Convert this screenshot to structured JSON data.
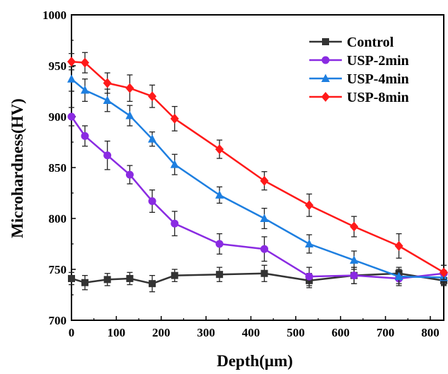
{
  "chart_data": {
    "type": "line",
    "xlabel": "Depth(μm)",
    "ylabel": "Microhardness(HV)",
    "xlim": [
      0,
      830
    ],
    "ylim": [
      700,
      1000
    ],
    "xticks": [
      0,
      100,
      200,
      300,
      400,
      500,
      600,
      700,
      800
    ],
    "yticks": [
      700,
      750,
      800,
      850,
      900,
      950,
      1000
    ],
    "grid": false,
    "legend_position": "top-right",
    "x": [
      0,
      30,
      80,
      130,
      180,
      230,
      330,
      430,
      530,
      630,
      730,
      830
    ],
    "series": [
      {
        "name": "Control",
        "color": "#333333",
        "marker": "square",
        "values": [
          741,
          737,
          740,
          741,
          736,
          744,
          745,
          746,
          739,
          744,
          746,
          739
        ],
        "errors": [
          6,
          7,
          6,
          6,
          8,
          6,
          7,
          8,
          7,
          8,
          6,
          5
        ]
      },
      {
        "name": "USP-2min",
        "color": "#8a2be2",
        "marker": "circle",
        "values": [
          900,
          881,
          862,
          843,
          817,
          795,
          775,
          770,
          743,
          744,
          741,
          746
        ],
        "errors": [
          9,
          10,
          14,
          9,
          11,
          12,
          10,
          12,
          9,
          8,
          7,
          8
        ]
      },
      {
        "name": "USP-4min",
        "color": "#1e7fe0",
        "marker": "triangle",
        "values": [
          937,
          926,
          916,
          901,
          878,
          853,
          823,
          800,
          775,
          759,
          743,
          742
        ],
        "errors": [
          12,
          11,
          11,
          10,
          7,
          10,
          8,
          10,
          9,
          9,
          7,
          7
        ]
      },
      {
        "name": "USP-8min",
        "color": "#ff1a1a",
        "marker": "diamond",
        "values": [
          954,
          953,
          933,
          928,
          920,
          898,
          868,
          837,
          813,
          792,
          773,
          747
        ],
        "errors": [
          8,
          10,
          10,
          13,
          11,
          12,
          9,
          9,
          11,
          10,
          12,
          7
        ]
      }
    ]
  }
}
